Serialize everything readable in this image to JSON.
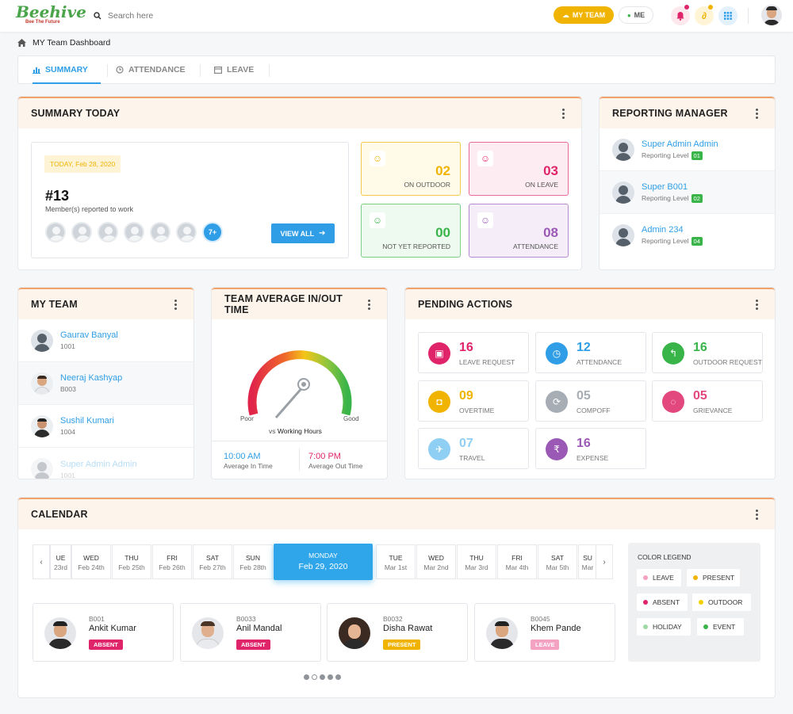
{
  "header": {
    "logo_text": "Beehive",
    "logo_tagline": "Bee The Future",
    "search_placeholder": "Search here",
    "my_team_label": "MY TEAM",
    "me_label": "ME"
  },
  "breadcrumb": {
    "title": "MY Team Dashboard"
  },
  "tabs": [
    {
      "label": "SUMMARY",
      "active": true,
      "icon": "bar-chart-icon"
    },
    {
      "label": "ATTENDANCE",
      "active": false,
      "icon": "clock-icon"
    },
    {
      "label": "LEAVE",
      "active": false,
      "icon": "calendar-icon"
    }
  ],
  "summary": {
    "title": "SUMMARY TODAY",
    "today_label": "TODAY, Feb 28, 2020",
    "count": "#13",
    "count_caption": "Member(s) reported to work",
    "more_label": "7+",
    "view_all_label": "VIEW ALL",
    "stats": [
      {
        "value": "02",
        "label": "ON OUTDOOR",
        "color": "#f0b400"
      },
      {
        "value": "03",
        "label": "ON LEAVE",
        "color": "#e0246a"
      },
      {
        "value": "00",
        "label": "NOT YET REPORTED",
        "color": "#38b449"
      },
      {
        "value": "08",
        "label": "ATTENDANCE",
        "color": "#9b59b6"
      }
    ]
  },
  "reporting_manager": {
    "title": "REPORTING MANAGER",
    "level_prefix": "Reporting Level",
    "items": [
      {
        "name": "Super Admin Admin",
        "level": "01"
      },
      {
        "name": "Super B001",
        "level": "02"
      },
      {
        "name": "Admin 234",
        "level": "04"
      }
    ]
  },
  "my_team": {
    "title": "MY TEAM",
    "members": [
      {
        "name": "Gaurav Banyal",
        "code": "1001"
      },
      {
        "name": "Neeraj Kashyap",
        "code": "B003"
      },
      {
        "name": "Sushil Kumari",
        "code": "1004"
      },
      {
        "name": "Super Admin Admin",
        "code": "1001"
      }
    ]
  },
  "team_average": {
    "title": "TEAM AVERAGE IN/OUT TIME",
    "poor_label": "Poor",
    "good_label": "Good",
    "vs_label": "vs",
    "vs_value": "Working Hours",
    "in_time": "10:00 AM",
    "in_label": "Average In Time",
    "out_time": "7:00 PM",
    "out_label": "Average Out Time"
  },
  "pending_actions": {
    "title": "PENDING ACTIONS",
    "items": [
      {
        "value": "16",
        "label": "LEAVE REQUEST",
        "color": "#e0246a",
        "icon": "calendar-icon"
      },
      {
        "value": "12",
        "label": "ATTENDANCE",
        "color": "#2f9ee6",
        "icon": "clock-icon"
      },
      {
        "value": "16",
        "label": "OUTDOOR REQUEST",
        "color": "#38b449",
        "icon": "reply-icon"
      },
      {
        "value": "09",
        "label": "OVERTIME",
        "color": "#f0b400",
        "icon": "bookmark-icon"
      },
      {
        "value": "05",
        "label": "COMPOFF",
        "color": "#a6adb5",
        "icon": "refresh-icon"
      },
      {
        "value": "05",
        "label": "GRIEVANCE",
        "color": "#e2477d",
        "icon": "chat-icon"
      },
      {
        "value": "07",
        "label": "TRAVEL",
        "color": "#8fcff3",
        "icon": "plane-icon"
      },
      {
        "value": "16",
        "label": "EXPENSE",
        "color": "#9b59b6",
        "icon": "rupee-icon"
      }
    ]
  },
  "calendar": {
    "title": "CALENDAR",
    "days_before": [
      {
        "name": "UE",
        "date": "23rd"
      },
      {
        "name": "WED",
        "date": "Feb 24th"
      },
      {
        "name": "THU",
        "date": "Feb 25th"
      },
      {
        "name": "FRI",
        "date": "Feb 26th"
      },
      {
        "name": "SAT",
        "date": "Feb 27th"
      },
      {
        "name": "SUN",
        "date": "Feb 28th"
      }
    ],
    "selected": {
      "name": "MONDAY",
      "date": "Feb 29, 2020"
    },
    "days_after": [
      {
        "name": "TUE",
        "date": "Mar 1st"
      },
      {
        "name": "WED",
        "date": "Mar 2nd"
      },
      {
        "name": "THU",
        "date": "Mar 3rd"
      },
      {
        "name": "FRI",
        "date": "Mar 4th"
      },
      {
        "name": "SAT",
        "date": "Mar 5th"
      },
      {
        "name": "SU",
        "date": "Mar"
      }
    ],
    "employees": [
      {
        "code": "B001",
        "name": "Ankit Kumar",
        "status": "ABSENT",
        "color": "#e0246a"
      },
      {
        "code": "B0033",
        "name": "Anil Mandal",
        "status": "ABSENT",
        "color": "#e0246a"
      },
      {
        "code": "B0032",
        "name": "Disha Rawat",
        "status": "PRESENT",
        "color": "#f0b400"
      },
      {
        "code": "B0045",
        "name": "Khem Pande",
        "status": "LEAVE",
        "color": "#f3a2c1"
      }
    ],
    "legend_title": "COLOR LEGEND",
    "legend": [
      {
        "label": "LEAVE",
        "color": "#f3a2c1"
      },
      {
        "label": "PRESENT",
        "color": "#f0b400"
      },
      {
        "label": "ABSENT",
        "color": "#e0246a"
      },
      {
        "label": "OUTDOOR",
        "color": "#f5d000"
      },
      {
        "label": "HOLIDAY",
        "color": "#9fd9a6"
      },
      {
        "label": "EVENT",
        "color": "#38b449"
      }
    ]
  }
}
